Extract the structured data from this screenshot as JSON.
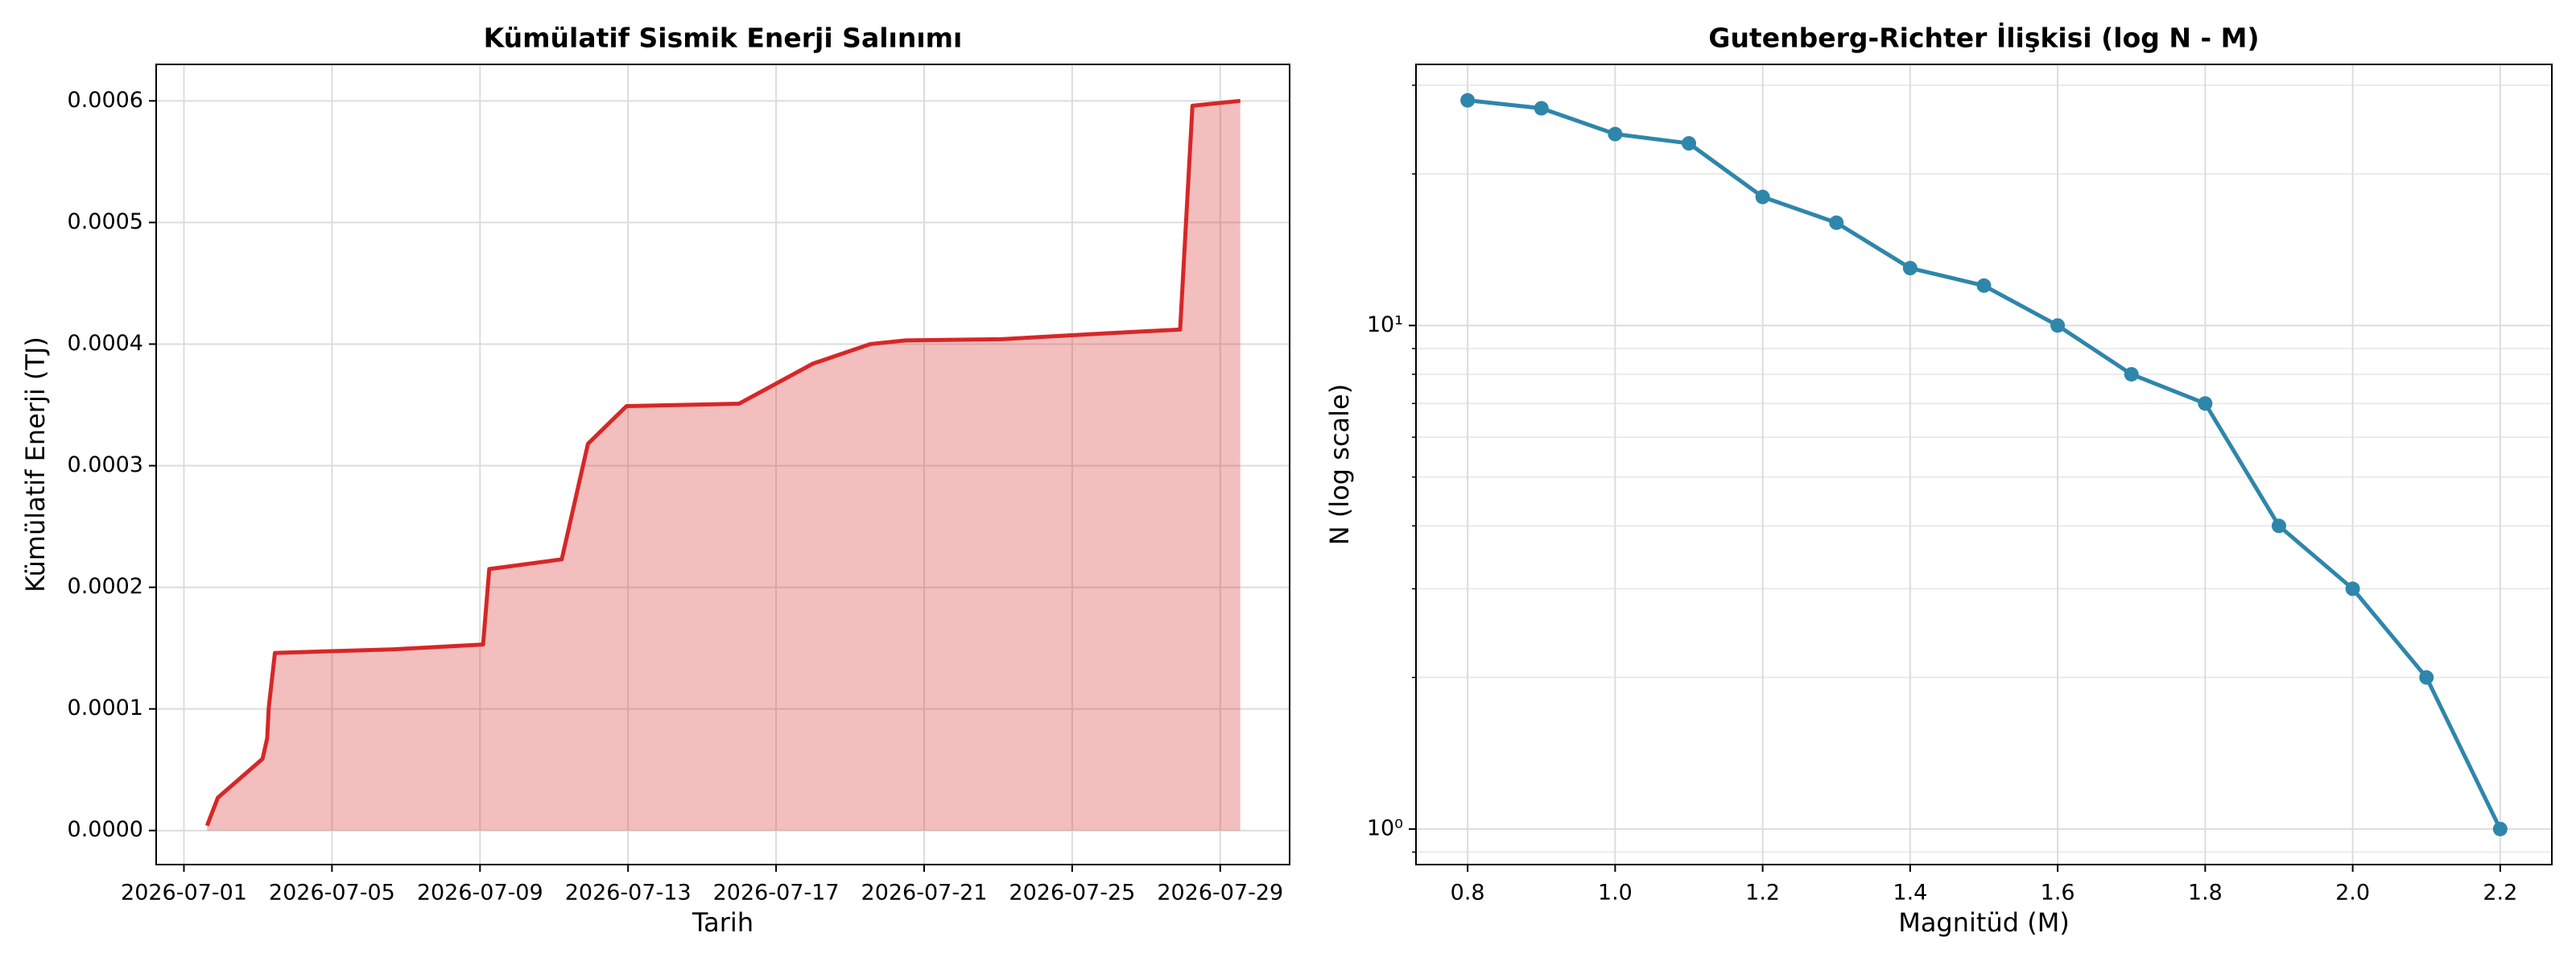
{
  "chart_data": [
    {
      "type": "area",
      "title": "Kümülatif Sismik Enerji Salınımı",
      "x_label": "Tarih",
      "y_label": "Kümülatif Enerji (TJ)",
      "x": [
        "2026-07-01 15:00",
        "2026-07-01 22:00",
        "2026-07-03 03:00",
        "2026-07-03 06:00",
        "2026-07-03 07:00",
        "2026-07-03 11:00",
        "2026-07-06 16:00",
        "2026-07-09 02:00",
        "2026-07-09 06:00",
        "2026-07-11 05:00",
        "2026-07-11 22:00",
        "2026-07-12 23:00",
        "2026-07-16 00:00",
        "2026-07-18 00:00",
        "2026-07-19 13:00",
        "2026-07-20 12:00",
        "2026-07-23 02:00",
        "2026-07-26 00:00",
        "2026-07-27 22:00",
        "2026-07-28 06:00",
        "2026-07-29 13:00"
      ],
      "series": [
        {
          "color": "#d62728",
          "fill_alpha": 0.3,
          "values": [
            4e-06,
            2.7e-05,
            5.9e-05,
            7.6e-05,
            0.000101,
            0.000146,
            0.000149,
            0.000153,
            0.000215,
            0.000223,
            0.000318,
            0.000349,
            0.000351,
            0.000384,
            0.0004,
            0.000403,
            0.000404,
            0.000409,
            0.000412,
            0.000596,
            0.0006
          ]
        }
      ],
      "xlim": [
        "2026-06-30 06:00",
        "2026-07-30 21:00"
      ],
      "xticks": [
        "2026-07-01",
        "2026-07-05",
        "2026-07-09",
        "2026-07-13",
        "2026-07-17",
        "2026-07-21",
        "2026-07-25",
        "2026-07-29"
      ],
      "ylim": [
        -2.8e-05,
        0.00063
      ],
      "yticks": [
        {
          "value": 0,
          "label": "0.0000"
        },
        0.0001,
        0.0002,
        0.0003,
        0.0004,
        0.0005,
        0.0006
      ],
      "grid": true
    },
    {
      "type": "line",
      "title": "Gutenberg-Richter İlişkisi (log N - M)",
      "x_label": "Magnitüd (M)",
      "y_label": "N (log scale)",
      "x": [
        0.8,
        0.9,
        1.0,
        1.1,
        1.2,
        1.3,
        1.4,
        1.5,
        1.6,
        1.7,
        1.8,
        1.9,
        2.0,
        2.1,
        2.2
      ],
      "series": [
        {
          "color": "#2e86ab",
          "marker": "circle",
          "values": [
            28,
            27,
            24,
            23,
            18,
            16,
            13,
            12,
            10,
            8,
            7,
            4,
            3,
            2,
            1
          ]
        }
      ],
      "xlim": [
        0.73,
        2.27
      ],
      "xticks": [
        0.8,
        {
          "value": 1.0,
          "label": "1.0"
        },
        1.2,
        1.4,
        1.6,
        1.8,
        {
          "value": 2.0,
          "label": "2.0"
        },
        2.2
      ],
      "ylim": [
        0.85,
        33
      ],
      "yscale": "log",
      "yticks": [
        {
          "value": 1,
          "label": "10⁰"
        },
        {
          "value": 10,
          "label": "10¹"
        }
      ],
      "grid": true,
      "minor_grid": true
    }
  ]
}
